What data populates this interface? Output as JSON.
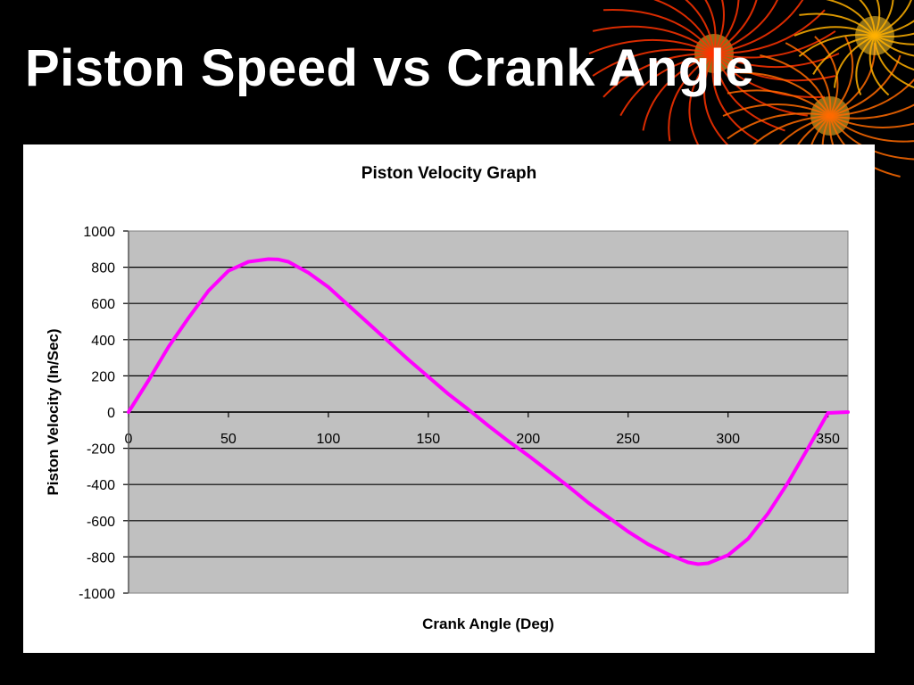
{
  "slide": {
    "title": "Piston Speed vs Crank Angle"
  },
  "colors": {
    "background": "#000000",
    "plot_area": "#c0c0c0",
    "series_line": "#ff00ff",
    "gridline": "#000000"
  },
  "chart_data": {
    "type": "line",
    "title": "Piston Velocity Graph",
    "xlabel": "Crank Angle (Deg)",
    "ylabel": "Piston Velocity (In/Sec)",
    "xlim": [
      0,
      360
    ],
    "ylim": [
      -1000,
      1000
    ],
    "x_ticks": [
      0,
      50,
      100,
      150,
      200,
      250,
      300,
      350
    ],
    "y_ticks": [
      1000,
      800,
      600,
      400,
      200,
      0,
      -200,
      -400,
      -600,
      -800,
      -1000
    ],
    "grid": true,
    "legend": "none",
    "series": [
      {
        "x": [
          0,
          10,
          20,
          30,
          40,
          50,
          60,
          70,
          75,
          80,
          90,
          100,
          110,
          120,
          130,
          140,
          150,
          160,
          170,
          180,
          190,
          200,
          210,
          220,
          230,
          240,
          250,
          260,
          270,
          280,
          285,
          290,
          300,
          310,
          320,
          330,
          340,
          350,
          360
        ],
        "values": [
          0,
          175,
          360,
          520,
          670,
          780,
          830,
          845,
          843,
          830,
          770,
          690,
          590,
          490,
          390,
          290,
          195,
          100,
          15,
          -75,
          -160,
          -240,
          -325,
          -410,
          -500,
          -580,
          -660,
          -730,
          -785,
          -830,
          -840,
          -835,
          -790,
          -700,
          -560,
          -390,
          -200,
          -5,
          0
        ]
      }
    ]
  }
}
